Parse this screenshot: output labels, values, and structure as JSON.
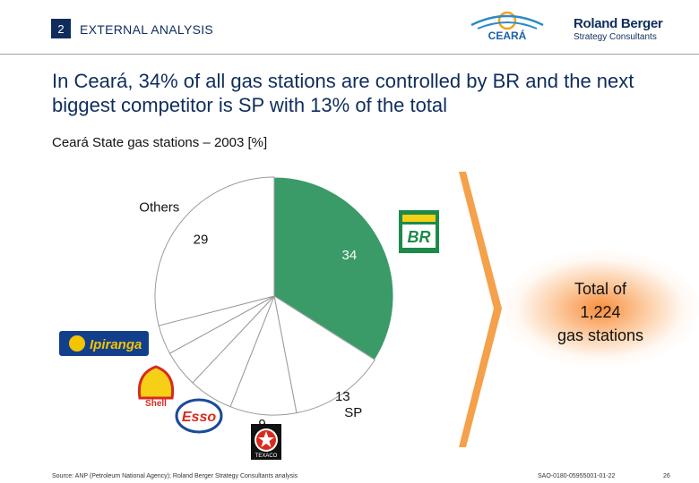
{
  "header": {
    "section_number": "2",
    "section_title": "EXTERNAL ANALYSIS"
  },
  "logos": {
    "ceara": "CEARÁ",
    "roland_berger": "Roland Berger",
    "roland_berger_sub": "Strategy Consultants"
  },
  "headline": "In Ceará, 34% of all gas stations are controlled by BR and the next biggest competitor is SP with 13% of the total",
  "subtitle": "Ceará State gas stations – 2003 [%]",
  "total": {
    "line1": "Total of",
    "line2": "1,224",
    "line3": "gas stations"
  },
  "footer": {
    "source": "Source: ANP (Petroleum National Agency); Roland Berger Strategy Consultants analysis",
    "doc_id": "SAO-0180-05955001-01-22",
    "page": "26"
  },
  "colors": {
    "highlight": "#3a9a68",
    "navy": "#0f2d5c",
    "orange": "#f28a2e"
  },
  "chart_data": {
    "type": "pie",
    "title": "Ceará State gas stations – 2003 [%]",
    "slices": [
      {
        "label": "BR",
        "value": 34,
        "highlight": true,
        "logo": "br-logo"
      },
      {
        "label": "SP",
        "value": 13
      },
      {
        "label": "",
        "value": 9,
        "logo": "texaco-logo"
      },
      {
        "label": "",
        "value": 6,
        "logo": "esso-logo"
      },
      {
        "label": "",
        "value": 5,
        "logo": "shell-logo"
      },
      {
        "label": "",
        "value": 4,
        "logo": "ipiranga-logo"
      },
      {
        "label": "Others",
        "value": 29
      }
    ],
    "logo_texts": {
      "br": "BR",
      "ipiranga": "Ipiranga",
      "shell": "Shell",
      "esso": "Esso",
      "texaco": "TEXACO"
    }
  }
}
